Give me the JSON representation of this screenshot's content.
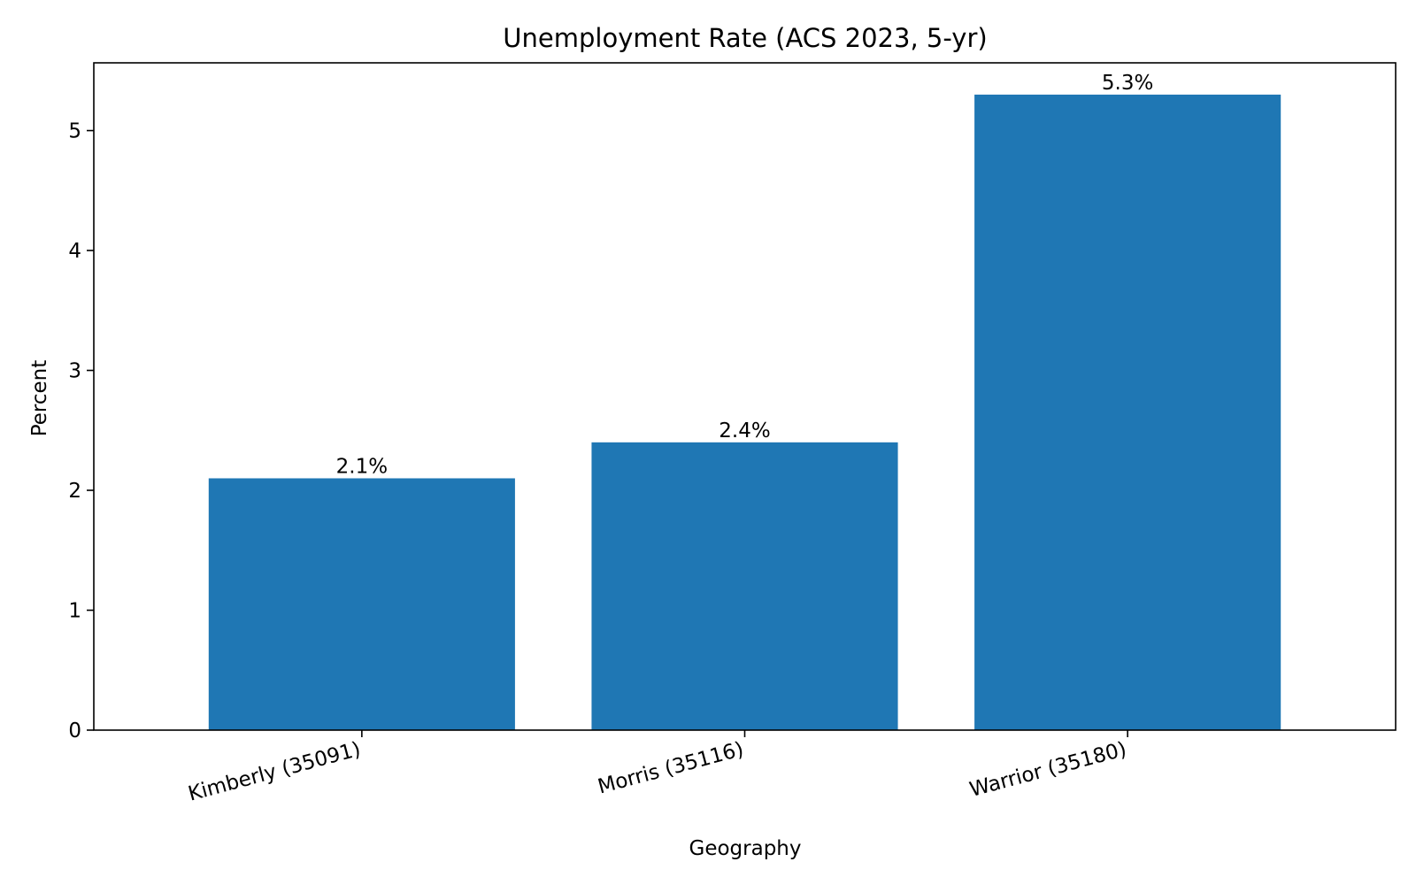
{
  "chart_data": {
    "type": "bar",
    "title": "Unemployment Rate (ACS 2023, 5-yr)",
    "xlabel": "Geography",
    "ylabel": "Percent",
    "categories": [
      "Kimberly (35091)",
      "Morris (35116)",
      "Warrior (35180)"
    ],
    "values": [
      2.1,
      2.4,
      5.3
    ],
    "data_labels": [
      "2.1%",
      "2.4%",
      "5.3%"
    ],
    "ylim": [
      0,
      5.565
    ],
    "yticks": [
      0,
      1,
      2,
      3,
      4,
      5
    ],
    "grid": false,
    "legend": "none",
    "bar_color": "#1f77b4"
  }
}
